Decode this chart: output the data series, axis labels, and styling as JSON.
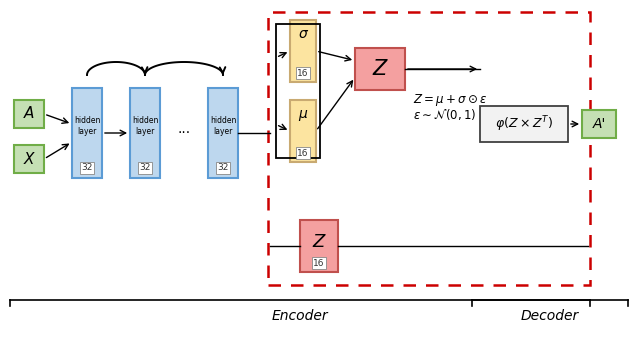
{
  "fig_width": 6.4,
  "fig_height": 3.39,
  "bg_color": "#ffffff",
  "green_fill": "#c5e0b4",
  "green_edge": "#70ad47",
  "blue_fill": "#bdd7ee",
  "blue_edge": "#5b9bd5",
  "yellow_fill": "#fce4a0",
  "yellow_edge": "#c9aa71",
  "red_fill": "#f4a0a0",
  "red_edge": "#c0504d",
  "phi_fill": "#f2f2f2",
  "phi_edge": "#404040",
  "dashed_red": "#cc0000",
  "black": "#000000",
  "encoder_label": "Encoder",
  "decoder_label": "Decoder",
  "formula1": "$Z = \\mu + \\sigma \\odot \\varepsilon$",
  "formula2": "$\\varepsilon \\sim \\mathcal{N}(0, 1)$",
  "phi_label": "$\\varphi(Z \\times Z^T)$"
}
